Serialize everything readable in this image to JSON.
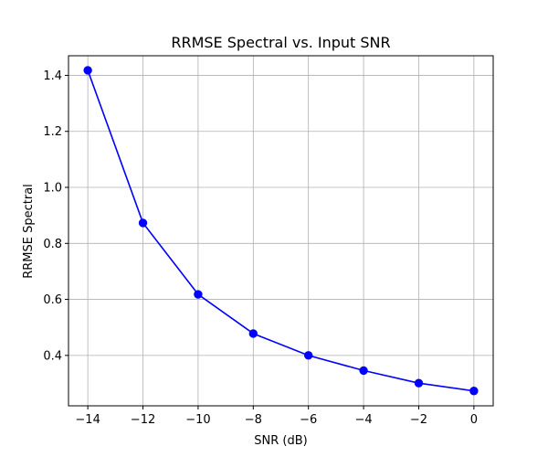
{
  "chart_data": {
    "type": "line",
    "title": "RRMSE Spectral vs. Input SNR",
    "xlabel": "SNR (dB)",
    "ylabel": "RRMSE Spectral",
    "xlim": [
      -14.7,
      0.7
    ],
    "ylim": [
      0.22,
      1.47
    ],
    "xticks": [
      -14,
      -12,
      -10,
      -8,
      -6,
      -4,
      -2,
      0
    ],
    "yticks": [
      0.4,
      0.6,
      0.8,
      1.0,
      1.2,
      1.4
    ],
    "grid": true,
    "series": [
      {
        "name": "RRMSE Spectral",
        "color": "#0000ff",
        "marker": "circle",
        "x": [
          -14,
          -12,
          -10,
          -8,
          -6,
          -4,
          -2,
          0
        ],
        "y": [
          1.418,
          0.873,
          0.618,
          0.478,
          0.4,
          0.346,
          0.301,
          0.273
        ]
      }
    ]
  }
}
